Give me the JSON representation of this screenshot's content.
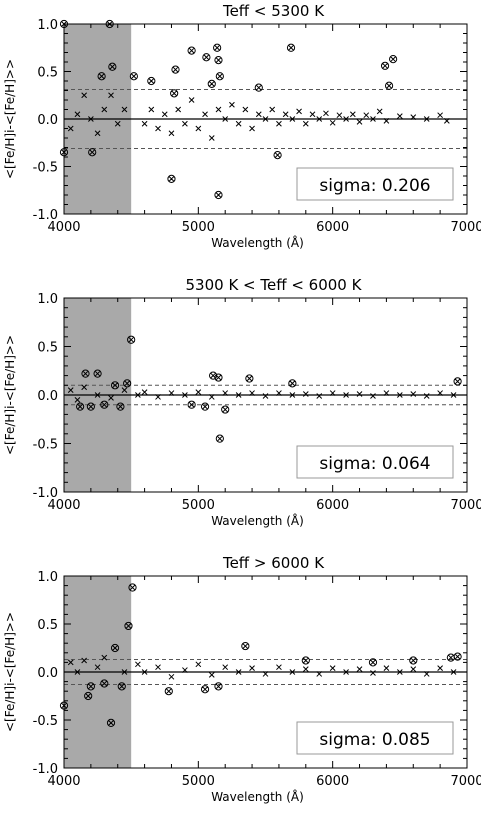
{
  "chart_data": [
    {
      "type": "scatter",
      "title": "Teff < 5300 K",
      "xlabel": "Wavelength (Å)",
      "ylabel": "<[Fe/H]i-<[Fe/H]>>",
      "xlim": [
        4000,
        7000
      ],
      "ylim": [
        -1.0,
        1.0
      ],
      "xticks": [
        "4000",
        "5000",
        "6000",
        "7000"
      ],
      "yticks": [
        "-1.0",
        "-0.5",
        "0.0",
        "0.5",
        "1.0"
      ],
      "shaded_x": [
        4000,
        4500
      ],
      "sigma_lines": [
        -0.31,
        0.31
      ],
      "sigma_text": "sigma: 0.206",
      "outliers": [
        [
          4000,
          1.0
        ],
        [
          4340,
          1.0
        ],
        [
          4280,
          0.45
        ],
        [
          4360,
          0.55
        ],
        [
          4520,
          0.45
        ],
        [
          4650,
          0.4
        ],
        [
          4820,
          0.27
        ],
        [
          4830,
          0.52
        ],
        [
          4950,
          0.72
        ],
        [
          5060,
          0.65
        ],
        [
          5100,
          0.37
        ],
        [
          5140,
          0.75
        ],
        [
          5150,
          0.62
        ],
        [
          5160,
          0.45
        ],
        [
          5690,
          0.75
        ],
        [
          5450,
          0.33
        ],
        [
          6390,
          0.56
        ],
        [
          6450,
          0.63
        ],
        [
          6420,
          0.35
        ],
        [
          4000,
          -0.35
        ],
        [
          4210,
          -0.35
        ],
        [
          4800,
          -0.63
        ],
        [
          5150,
          -0.8
        ],
        [
          5590,
          -0.38
        ]
      ],
      "crosses": [
        [
          4050,
          -0.1
        ],
        [
          4100,
          0.05
        ],
        [
          4150,
          0.25
        ],
        [
          4200,
          0.0
        ],
        [
          4250,
          -0.15
        ],
        [
          4300,
          0.1
        ],
        [
          4350,
          0.25
        ],
        [
          4400,
          -0.05
        ],
        [
          4450,
          0.1
        ],
        [
          4600,
          -0.05
        ],
        [
          4650,
          0.1
        ],
        [
          4700,
          -0.1
        ],
        [
          4750,
          0.05
        ],
        [
          4800,
          -0.15
        ],
        [
          4850,
          0.1
        ],
        [
          4900,
          -0.05
        ],
        [
          4950,
          0.2
        ],
        [
          5000,
          -0.1
        ],
        [
          5050,
          0.05
        ],
        [
          5100,
          -0.2
        ],
        [
          5150,
          0.1
        ],
        [
          5200,
          0.0
        ],
        [
          5250,
          0.15
        ],
        [
          5300,
          -0.05
        ],
        [
          5350,
          0.1
        ],
        [
          5400,
          -0.1
        ],
        [
          5450,
          0.05
        ],
        [
          5500,
          0.0
        ],
        [
          5550,
          0.1
        ],
        [
          5600,
          -0.05
        ],
        [
          5650,
          0.05
        ],
        [
          5700,
          0.0
        ],
        [
          5750,
          0.08
        ],
        [
          5800,
          -0.05
        ],
        [
          5850,
          0.05
        ],
        [
          5900,
          0.0
        ],
        [
          5950,
          0.06
        ],
        [
          6000,
          -0.04
        ],
        [
          6050,
          0.04
        ],
        [
          6100,
          0.0
        ],
        [
          6150,
          0.05
        ],
        [
          6200,
          -0.03
        ],
        [
          6250,
          0.04
        ],
        [
          6300,
          0.0
        ],
        [
          6350,
          0.08
        ],
        [
          6400,
          -0.02
        ],
        [
          6500,
          0.03
        ],
        [
          6600,
          0.02
        ],
        [
          6700,
          0.0
        ],
        [
          6800,
          0.04
        ],
        [
          6850,
          -0.02
        ]
      ]
    },
    {
      "type": "scatter",
      "title": "5300 K < Teff < 6000 K",
      "xlabel": "Wavelength (Å)",
      "ylabel": "<[Fe/H]i-<[Fe/H]>>",
      "xlim": [
        4000,
        7000
      ],
      "ylim": [
        -1.0,
        1.0
      ],
      "xticks": [
        "4000",
        "5000",
        "6000",
        "7000"
      ],
      "yticks": [
        "-1.0",
        "-0.5",
        "0.0",
        "0.5",
        "1.0"
      ],
      "shaded_x": [
        4000,
        4500
      ],
      "sigma_lines": [
        -0.1,
        0.1
      ],
      "sigma_text": "sigma: 0.064",
      "outliers": [
        [
          4500,
          0.57
        ],
        [
          4160,
          0.22
        ],
        [
          4250,
          0.22
        ],
        [
          4470,
          0.12
        ],
        [
          4380,
          0.1
        ],
        [
          4120,
          -0.12
        ],
        [
          4200,
          -0.12
        ],
        [
          4300,
          -0.1
        ],
        [
          4420,
          -0.12
        ],
        [
          5150,
          0.18
        ],
        [
          5110,
          0.2
        ],
        [
          5380,
          0.17
        ],
        [
          5700,
          0.12
        ],
        [
          5160,
          -0.45
        ],
        [
          6930,
          0.14
        ],
        [
          5050,
          -0.12
        ],
        [
          5200,
          -0.15
        ],
        [
          4950,
          -0.1
        ]
      ],
      "crosses": [
        [
          4050,
          0.05
        ],
        [
          4100,
          -0.05
        ],
        [
          4150,
          0.08
        ],
        [
          4250,
          0.0
        ],
        [
          4350,
          -0.03
        ],
        [
          4450,
          0.05
        ],
        [
          4550,
          0.0
        ],
        [
          4600,
          0.03
        ],
        [
          4700,
          -0.02
        ],
        [
          4800,
          0.02
        ],
        [
          4900,
          0.0
        ],
        [
          5000,
          0.03
        ],
        [
          5100,
          -0.02
        ],
        [
          5200,
          0.02
        ],
        [
          5300,
          0.0
        ],
        [
          5400,
          0.02
        ],
        [
          5500,
          -0.01
        ],
        [
          5600,
          0.02
        ],
        [
          5700,
          0.0
        ],
        [
          5800,
          0.01
        ],
        [
          5900,
          -0.01
        ],
        [
          6000,
          0.02
        ],
        [
          6100,
          0.0
        ],
        [
          6200,
          0.01
        ],
        [
          6300,
          -0.01
        ],
        [
          6400,
          0.02
        ],
        [
          6500,
          0.0
        ],
        [
          6600,
          0.01
        ],
        [
          6700,
          -0.01
        ],
        [
          6800,
          0.02
        ],
        [
          6900,
          0.0
        ]
      ]
    },
    {
      "type": "scatter",
      "title": "Teff > 6000 K",
      "xlabel": "Wavelength (Å)",
      "ylabel": "<[Fe/H]i-<[Fe/H]>>",
      "xlim": [
        4000,
        7000
      ],
      "ylim": [
        -1.0,
        1.0
      ],
      "xticks": [
        "4000",
        "5000",
        "6000",
        "7000"
      ],
      "yticks": [
        "-1.0",
        "-0.5",
        "0.0",
        "0.5",
        "1.0"
      ],
      "shaded_x": [
        4000,
        4500
      ],
      "sigma_lines": [
        -0.13,
        0.13
      ],
      "sigma_text": "sigma: 0.085",
      "outliers": [
        [
          4510,
          0.88
        ],
        [
          4480,
          0.48
        ],
        [
          4380,
          0.25
        ],
        [
          4000,
          -0.35
        ],
        [
          4350,
          -0.53
        ],
        [
          4180,
          -0.25
        ],
        [
          4200,
          -0.15
        ],
        [
          4300,
          -0.12
        ],
        [
          4430,
          -0.15
        ],
        [
          5350,
          0.27
        ],
        [
          5800,
          0.12
        ],
        [
          6300,
          0.1
        ],
        [
          6600,
          0.12
        ],
        [
          6880,
          0.15
        ],
        [
          6930,
          0.16
        ],
        [
          4780,
          -0.2
        ],
        [
          5050,
          -0.18
        ],
        [
          5150,
          -0.15
        ]
      ],
      "crosses": [
        [
          4050,
          0.1
        ],
        [
          4100,
          0.0
        ],
        [
          4150,
          0.12
        ],
        [
          4250,
          0.05
        ],
        [
          4300,
          0.15
        ],
        [
          4450,
          0.0
        ],
        [
          4550,
          0.08
        ],
        [
          4600,
          0.0
        ],
        [
          4700,
          0.05
        ],
        [
          4800,
          -0.05
        ],
        [
          4900,
          0.02
        ],
        [
          5000,
          0.08
        ],
        [
          5100,
          -0.03
        ],
        [
          5200,
          0.05
        ],
        [
          5300,
          0.0
        ],
        [
          5400,
          0.04
        ],
        [
          5500,
          -0.02
        ],
        [
          5600,
          0.05
        ],
        [
          5700,
          0.0
        ],
        [
          5800,
          0.03
        ],
        [
          5900,
          -0.02
        ],
        [
          6000,
          0.04
        ],
        [
          6100,
          0.0
        ],
        [
          6200,
          0.03
        ],
        [
          6300,
          -0.01
        ],
        [
          6400,
          0.04
        ],
        [
          6500,
          0.0
        ],
        [
          6600,
          0.03
        ],
        [
          6700,
          -0.02
        ],
        [
          6800,
          0.04
        ],
        [
          6900,
          0.0
        ]
      ]
    }
  ]
}
